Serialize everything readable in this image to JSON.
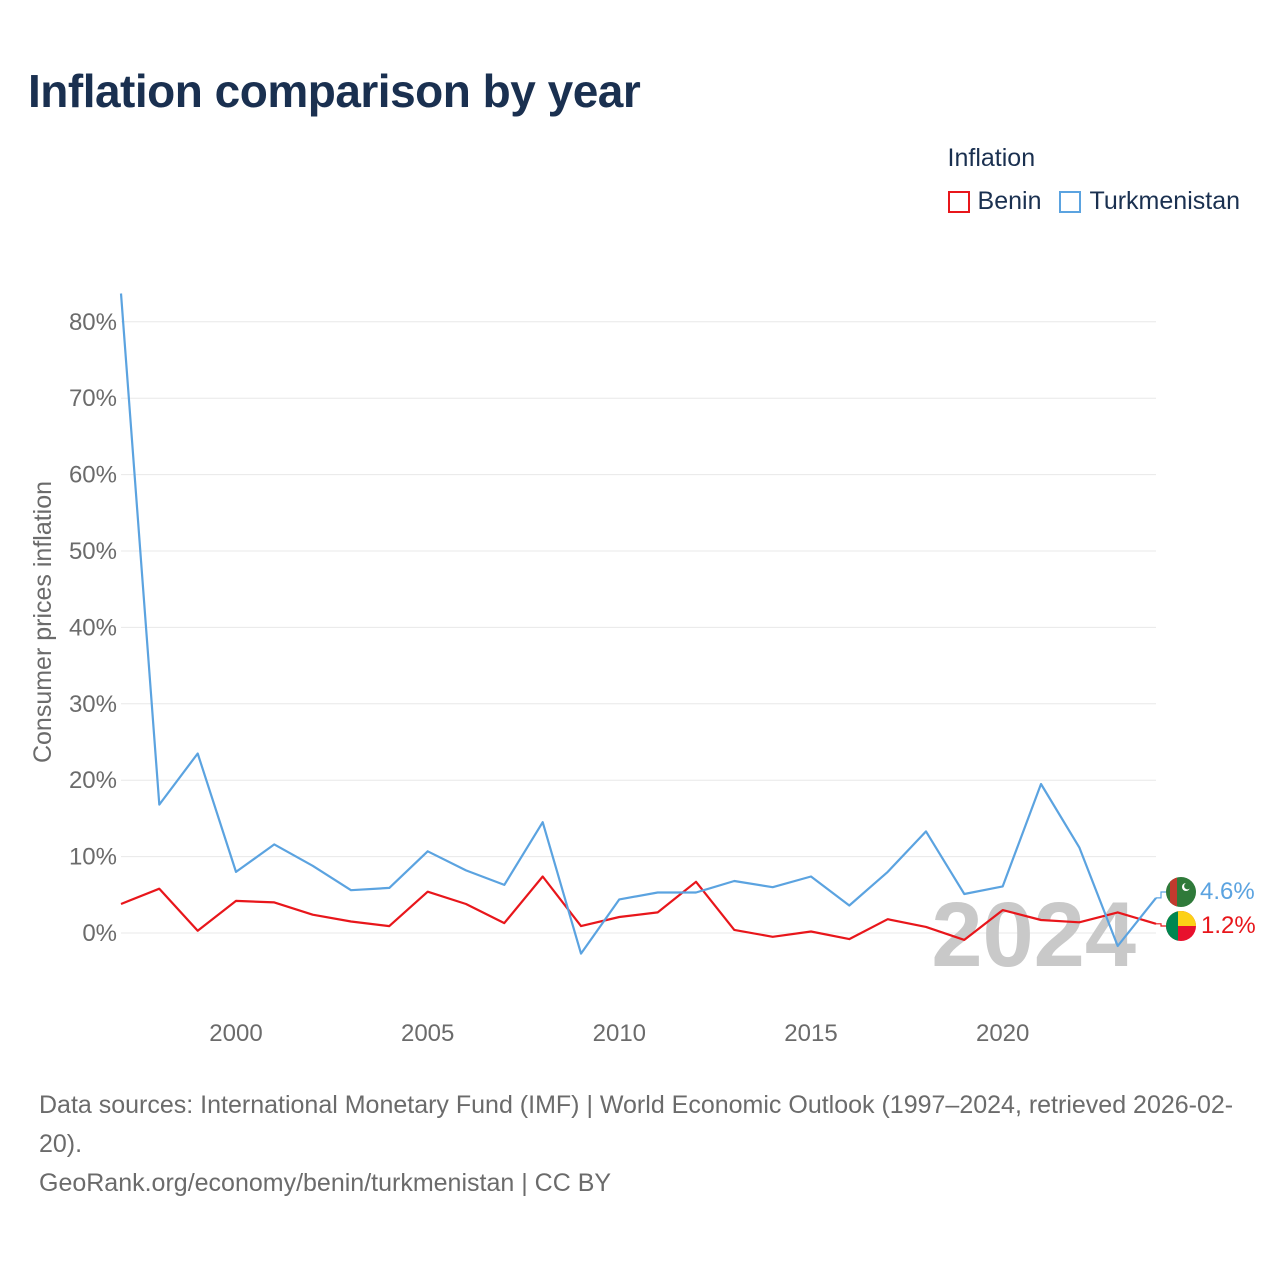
{
  "title": "Inflation comparison by year",
  "legend": {
    "title": "Inflation",
    "items": [
      {
        "label": "Benin",
        "color": "#e8161b"
      },
      {
        "label": "Turkmenistan",
        "color": "#5ba3e0"
      }
    ]
  },
  "chart_data": {
    "type": "line",
    "title": "Inflation comparison by year",
    "xlabel": "",
    "ylabel": "Consumer prices inflation",
    "xlim": [
      1997,
      2024
    ],
    "ylim": [
      -10,
      84
    ],
    "x_ticks": [
      2000,
      2005,
      2010,
      2015,
      2020
    ],
    "y_ticks": [
      0,
      10,
      20,
      30,
      40,
      50,
      60,
      70,
      80
    ],
    "y_tick_labels": [
      "0%",
      "10%",
      "20%",
      "30%",
      "40%",
      "50%",
      "60%",
      "70%",
      "80%"
    ],
    "grid": true,
    "year_marker": "2024",
    "x": [
      1997,
      1998,
      1999,
      2000,
      2001,
      2002,
      2003,
      2004,
      2005,
      2006,
      2007,
      2008,
      2009,
      2010,
      2011,
      2012,
      2013,
      2014,
      2015,
      2016,
      2017,
      2018,
      2019,
      2020,
      2021,
      2022,
      2023,
      2024
    ],
    "series": [
      {
        "name": "Benin",
        "color": "#e8161b",
        "end_label": "1.2%",
        "values": [
          3.8,
          5.8,
          0.3,
          4.2,
          4.0,
          2.4,
          1.5,
          0.9,
          5.4,
          3.8,
          1.3,
          7.4,
          0.9,
          2.1,
          2.7,
          6.7,
          0.4,
          -0.5,
          0.2,
          -0.8,
          1.8,
          0.8,
          -0.9,
          3.0,
          1.7,
          1.4,
          2.7,
          1.2
        ]
      },
      {
        "name": "Turkmenistan",
        "color": "#5ba3e0",
        "end_label": "4.6%",
        "values": [
          83.7,
          16.8,
          23.5,
          8.0,
          11.6,
          8.8,
          5.6,
          5.9,
          10.7,
          8.2,
          6.3,
          14.5,
          -2.7,
          4.4,
          5.3,
          5.3,
          6.8,
          6.0,
          7.4,
          3.6,
          8.0,
          13.3,
          5.1,
          6.1,
          19.5,
          11.2,
          -1.7,
          4.6
        ]
      }
    ]
  },
  "footer": {
    "line1": "Data sources: International Monetary Fund (IMF) | World Economic Outlook (1997–2024, retrieved 2026-02-20).",
    "line2": "GeoRank.org/economy/benin/turkmenistan | CC BY"
  }
}
